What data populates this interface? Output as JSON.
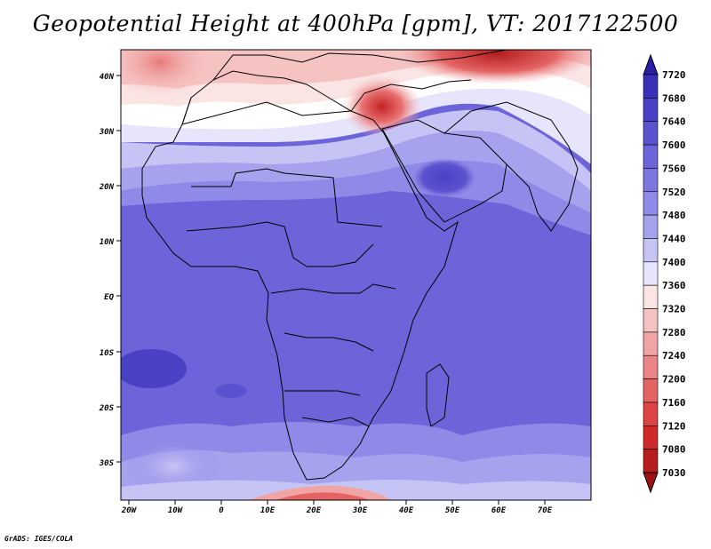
{
  "title": "Geopotential Height at 400hPa [gpm], VT: 2017122500",
  "credit": "GrADS: IGES/COLA",
  "map": {
    "lat_labels": [
      "40N",
      "30N",
      "20N",
      "10N",
      "EQ",
      "10S",
      "20S",
      "30S"
    ],
    "lon_labels": [
      "20W",
      "10W",
      "0",
      "10E",
      "20E",
      "30E",
      "40E",
      "50E",
      "60E",
      "70E"
    ]
  },
  "colorbar": {
    "levels": [
      "7720",
      "7680",
      "7640",
      "7600",
      "7560",
      "7520",
      "7480",
      "7440",
      "7400",
      "7360",
      "7320",
      "7280",
      "7240",
      "7200",
      "7160",
      "7120",
      "7080",
      "7030"
    ],
    "colors": [
      "#2b1fa6",
      "#3a30b8",
      "#4a41c4",
      "#5b52cf",
      "#6c64d8",
      "#7d76e0",
      "#8f89e7",
      "#a6a2ee",
      "#c6c4f5",
      "#e6e5fb",
      "#fbe4e4",
      "#f6c3c3",
      "#f1a4a4",
      "#eb8585",
      "#e46464",
      "#dd4545",
      "#cf2a2a",
      "#b51c1c",
      "#9c1212"
    ]
  }
}
